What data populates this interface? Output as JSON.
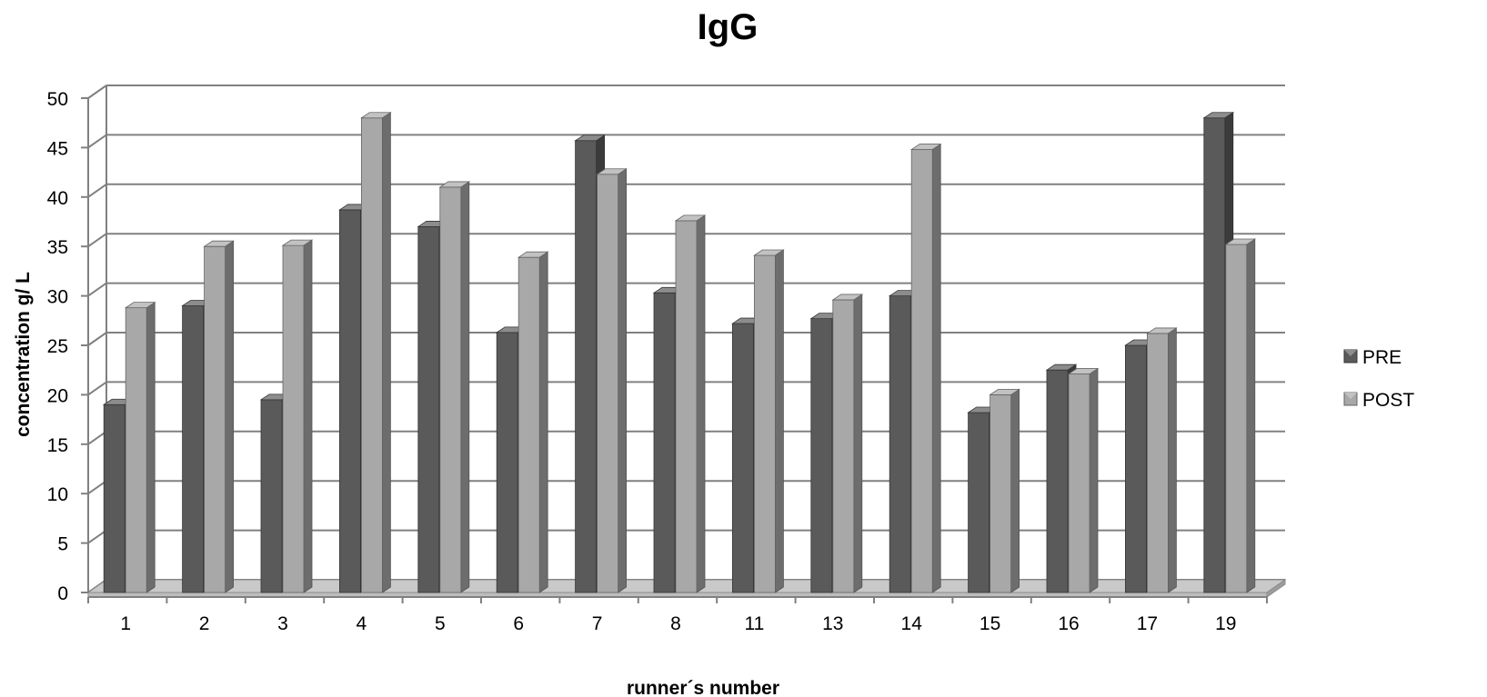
{
  "chart_data": {
    "type": "bar",
    "title": "IgG",
    "xlabel": "runner´s number",
    "ylabel": "concentration g/ L",
    "ylim": [
      0,
      50
    ],
    "yticks": [
      0,
      5,
      10,
      15,
      20,
      25,
      30,
      35,
      40,
      45,
      50
    ],
    "categories": [
      "1",
      "2",
      "3",
      "4",
      "5",
      "6",
      "7",
      "8",
      "11",
      "13",
      "14",
      "15",
      "16",
      "17",
      "19"
    ],
    "series": [
      {
        "name": "PRE",
        "color": "#5a5a5a",
        "values": [
          19.0,
          29.0,
          19.5,
          38.7,
          37.0,
          26.3,
          45.7,
          30.3,
          27.2,
          27.7,
          30.0,
          18.2,
          22.5,
          25.0,
          48.0
        ]
      },
      {
        "name": "POST",
        "color": "#a8a8a8",
        "values": [
          28.8,
          35.0,
          35.1,
          48.0,
          41.0,
          33.9,
          42.3,
          37.6,
          34.1,
          29.6,
          44.8,
          20.0,
          22.1,
          26.2,
          35.2
        ]
      }
    ],
    "grid": true,
    "legend_position": "right",
    "style": "3d-clustered-column"
  }
}
